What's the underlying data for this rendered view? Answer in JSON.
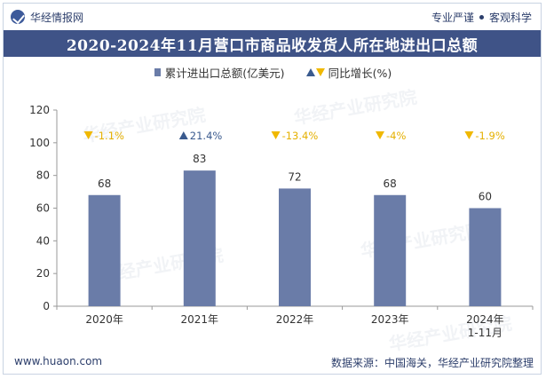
{
  "header": {
    "brand": "华经情报网",
    "tagline_left": "专业严谨",
    "tagline_right": "客观科学"
  },
  "watermark": "华经产业研究院",
  "footer": {
    "website": "www.huaon.com",
    "source": "数据来源：中国海关，华经产业研究院整理"
  },
  "colors": {
    "bar": "#6a7ca8",
    "title_bg": "#3f5387",
    "up": "#3a5a8e",
    "down": "#f0b800",
    "growth_text_down": "#e5b000",
    "growth_text_up": "#3a5a8e"
  },
  "chart_data": {
    "type": "bar",
    "title": "2020-2024年11月营口市商品收发货人所在地进出口总额",
    "categories": [
      "2020年",
      "2021年",
      "2022年",
      "2023年",
      "2024年\n1-11月"
    ],
    "series": [
      {
        "name": "累计进出口总额(亿美元)",
        "values": [
          68,
          83,
          72,
          68,
          60
        ]
      }
    ],
    "growth_series": {
      "name": "同比增长(%)",
      "labels": [
        "-1.1%",
        "21.4%",
        "-13.4%",
        "-4%",
        "-1.9%"
      ],
      "direction": [
        "down",
        "up",
        "down",
        "down",
        "down"
      ]
    },
    "ylim": [
      0,
      120
    ],
    "yticks": [
      0,
      20,
      40,
      60,
      80,
      100,
      120
    ],
    "grid": false,
    "legend_position": "top"
  }
}
